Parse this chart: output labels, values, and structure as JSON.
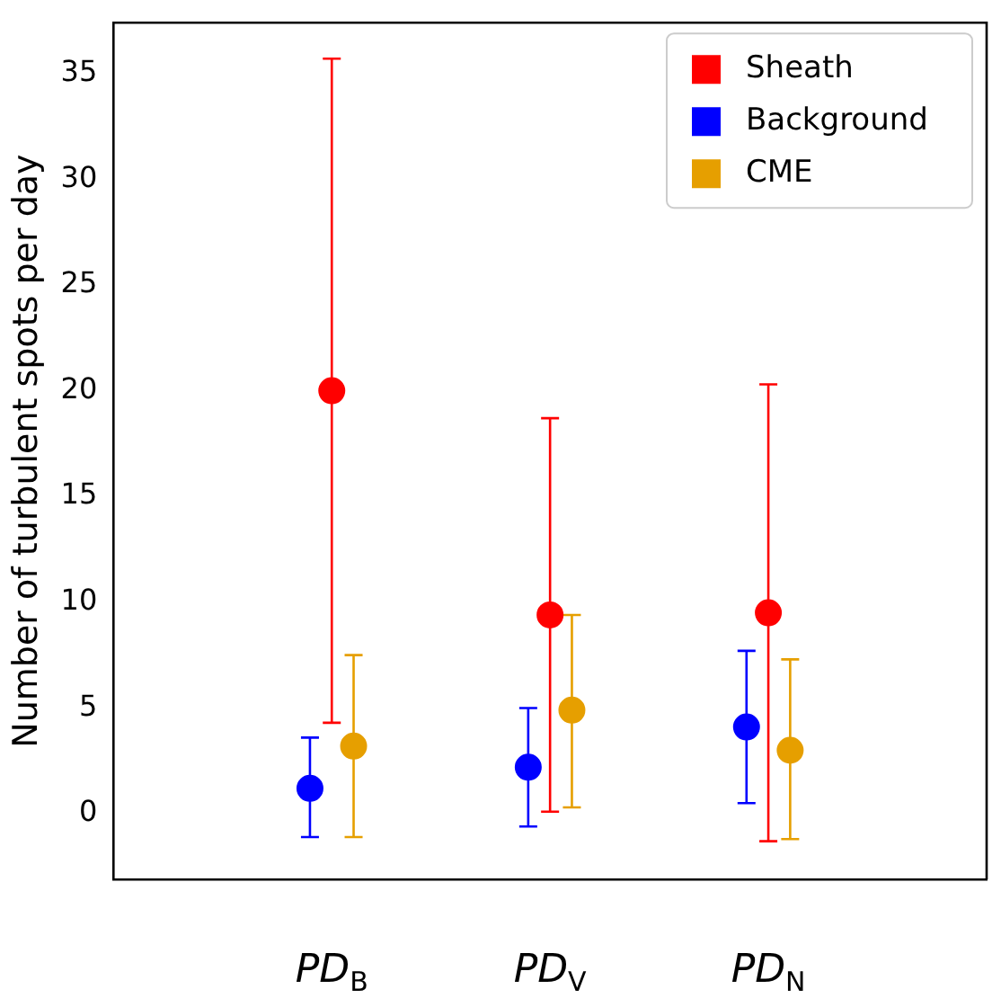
{
  "chart_data": {
    "type": "scatter",
    "ylabel": "Number of turbulent spots per day",
    "categories": [
      "PD$_{B}$",
      "PD$_{V}$",
      "PD$_{N}$"
    ],
    "ylim": [
      -3.1,
      37.4
    ],
    "yticks": [
      0,
      5,
      10,
      15,
      20,
      25,
      30,
      35
    ],
    "grid": false,
    "legend": "top right",
    "marker": "circle",
    "series": [
      {
        "name": "Sheath",
        "color": "#ff0000",
        "values": [
          20,
          9.4,
          9.5
        ],
        "errors": [
          [
            4.3,
            35.7
          ],
          [
            0.1,
            18.7
          ],
          [
            -1.3,
            20.3
          ]
        ]
      },
      {
        "name": "Background",
        "color": "#0000ff",
        "values": [
          1.2,
          2.2,
          4.1
        ],
        "errors": [
          [
            -1.1,
            3.6
          ],
          [
            -0.6,
            5.0
          ],
          [
            0.5,
            7.7
          ]
        ]
      },
      {
        "name": "CME",
        "color": "#e69f00",
        "values": [
          3.2,
          4.9,
          3.0
        ],
        "errors": [
          [
            -1.1,
            7.5
          ],
          [
            0.3,
            9.4
          ],
          [
            -1.2,
            7.3
          ]
        ]
      }
    ]
  }
}
